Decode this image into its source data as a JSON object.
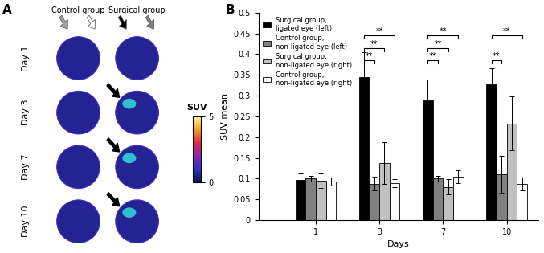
{
  "panel_labels": [
    "A",
    "B"
  ],
  "panel_a": {
    "columns": [
      "Control group",
      "Surgical group"
    ],
    "rows": [
      "Day 1",
      "Day 3",
      "Day 7",
      "Day 10"
    ],
    "colorbar": {
      "label": "SUV",
      "range": [
        0,
        5
      ],
      "ticks": [
        0,
        5
      ]
    }
  },
  "chart_data": {
    "type": "bar",
    "x_label": "Days",
    "y_label": "SUV mean",
    "categories": [
      "1",
      "3",
      "7",
      "10"
    ],
    "ylim": [
      0,
      0.5
    ],
    "yticks": [
      0,
      0.05,
      0.1,
      0.15,
      0.2,
      0.25,
      0.3,
      0.35,
      0.4,
      0.45,
      0.5
    ],
    "legend": "upper left",
    "series": [
      {
        "name": "Surgical group, ligated eye (left)",
        "color": "#000000",
        "values": [
          0.097,
          0.345,
          0.288,
          0.327
        ],
        "errors": [
          0.015,
          0.06,
          0.05,
          0.038
        ]
      },
      {
        "name": "Control group, non-ligated eye (left)",
        "color": "#808080",
        "values": [
          0.1,
          0.088,
          0.1,
          0.11
        ],
        "errors": [
          0.007,
          0.017,
          0.007,
          0.045
        ]
      },
      {
        "name": "Surgical group, non-ligated eye (right)",
        "color": "#c0c0c0",
        "values": [
          0.095,
          0.137,
          0.08,
          0.233
        ],
        "errors": [
          0.017,
          0.05,
          0.018,
          0.065
        ]
      },
      {
        "name": "Control group, non-ligated eye (right)",
        "color": "#ffffff",
        "values": [
          0.093,
          0.089,
          0.105,
          0.087
        ],
        "errors": [
          0.01,
          0.01,
          0.015,
          0.015
        ]
      }
    ],
    "annotations": [
      {
        "category": "3",
        "from": "Surgical group, ligated eye (left)",
        "to": "Control group, non-ligated eye (left)",
        "text": "**"
      },
      {
        "category": "3",
        "from": "Surgical group, ligated eye (left)",
        "to": "Surgical group, non-ligated eye (right)",
        "text": "**"
      },
      {
        "category": "3",
        "from": "Surgical group, ligated eye (left)",
        "to": "Control group, non-ligated eye (right)",
        "text": "**"
      },
      {
        "category": "7",
        "from": "Surgical group, ligated eye (left)",
        "to": "Control group, non-ligated eye (left)",
        "text": "**"
      },
      {
        "category": "7",
        "from": "Surgical group, ligated eye (left)",
        "to": "Surgical group, non-ligated eye (right)",
        "text": "**"
      },
      {
        "category": "7",
        "from": "Surgical group, ligated eye (left)",
        "to": "Control group, non-ligated eye (right)",
        "text": "**"
      },
      {
        "category": "10",
        "from": "Surgical group, ligated eye (left)",
        "to": "Control group, non-ligated eye (left)",
        "text": "**"
      },
      {
        "category": "10",
        "from": "Surgical group, ligated eye (left)",
        "to": "Control group, non-ligated eye (right)",
        "text": "**"
      }
    ]
  }
}
